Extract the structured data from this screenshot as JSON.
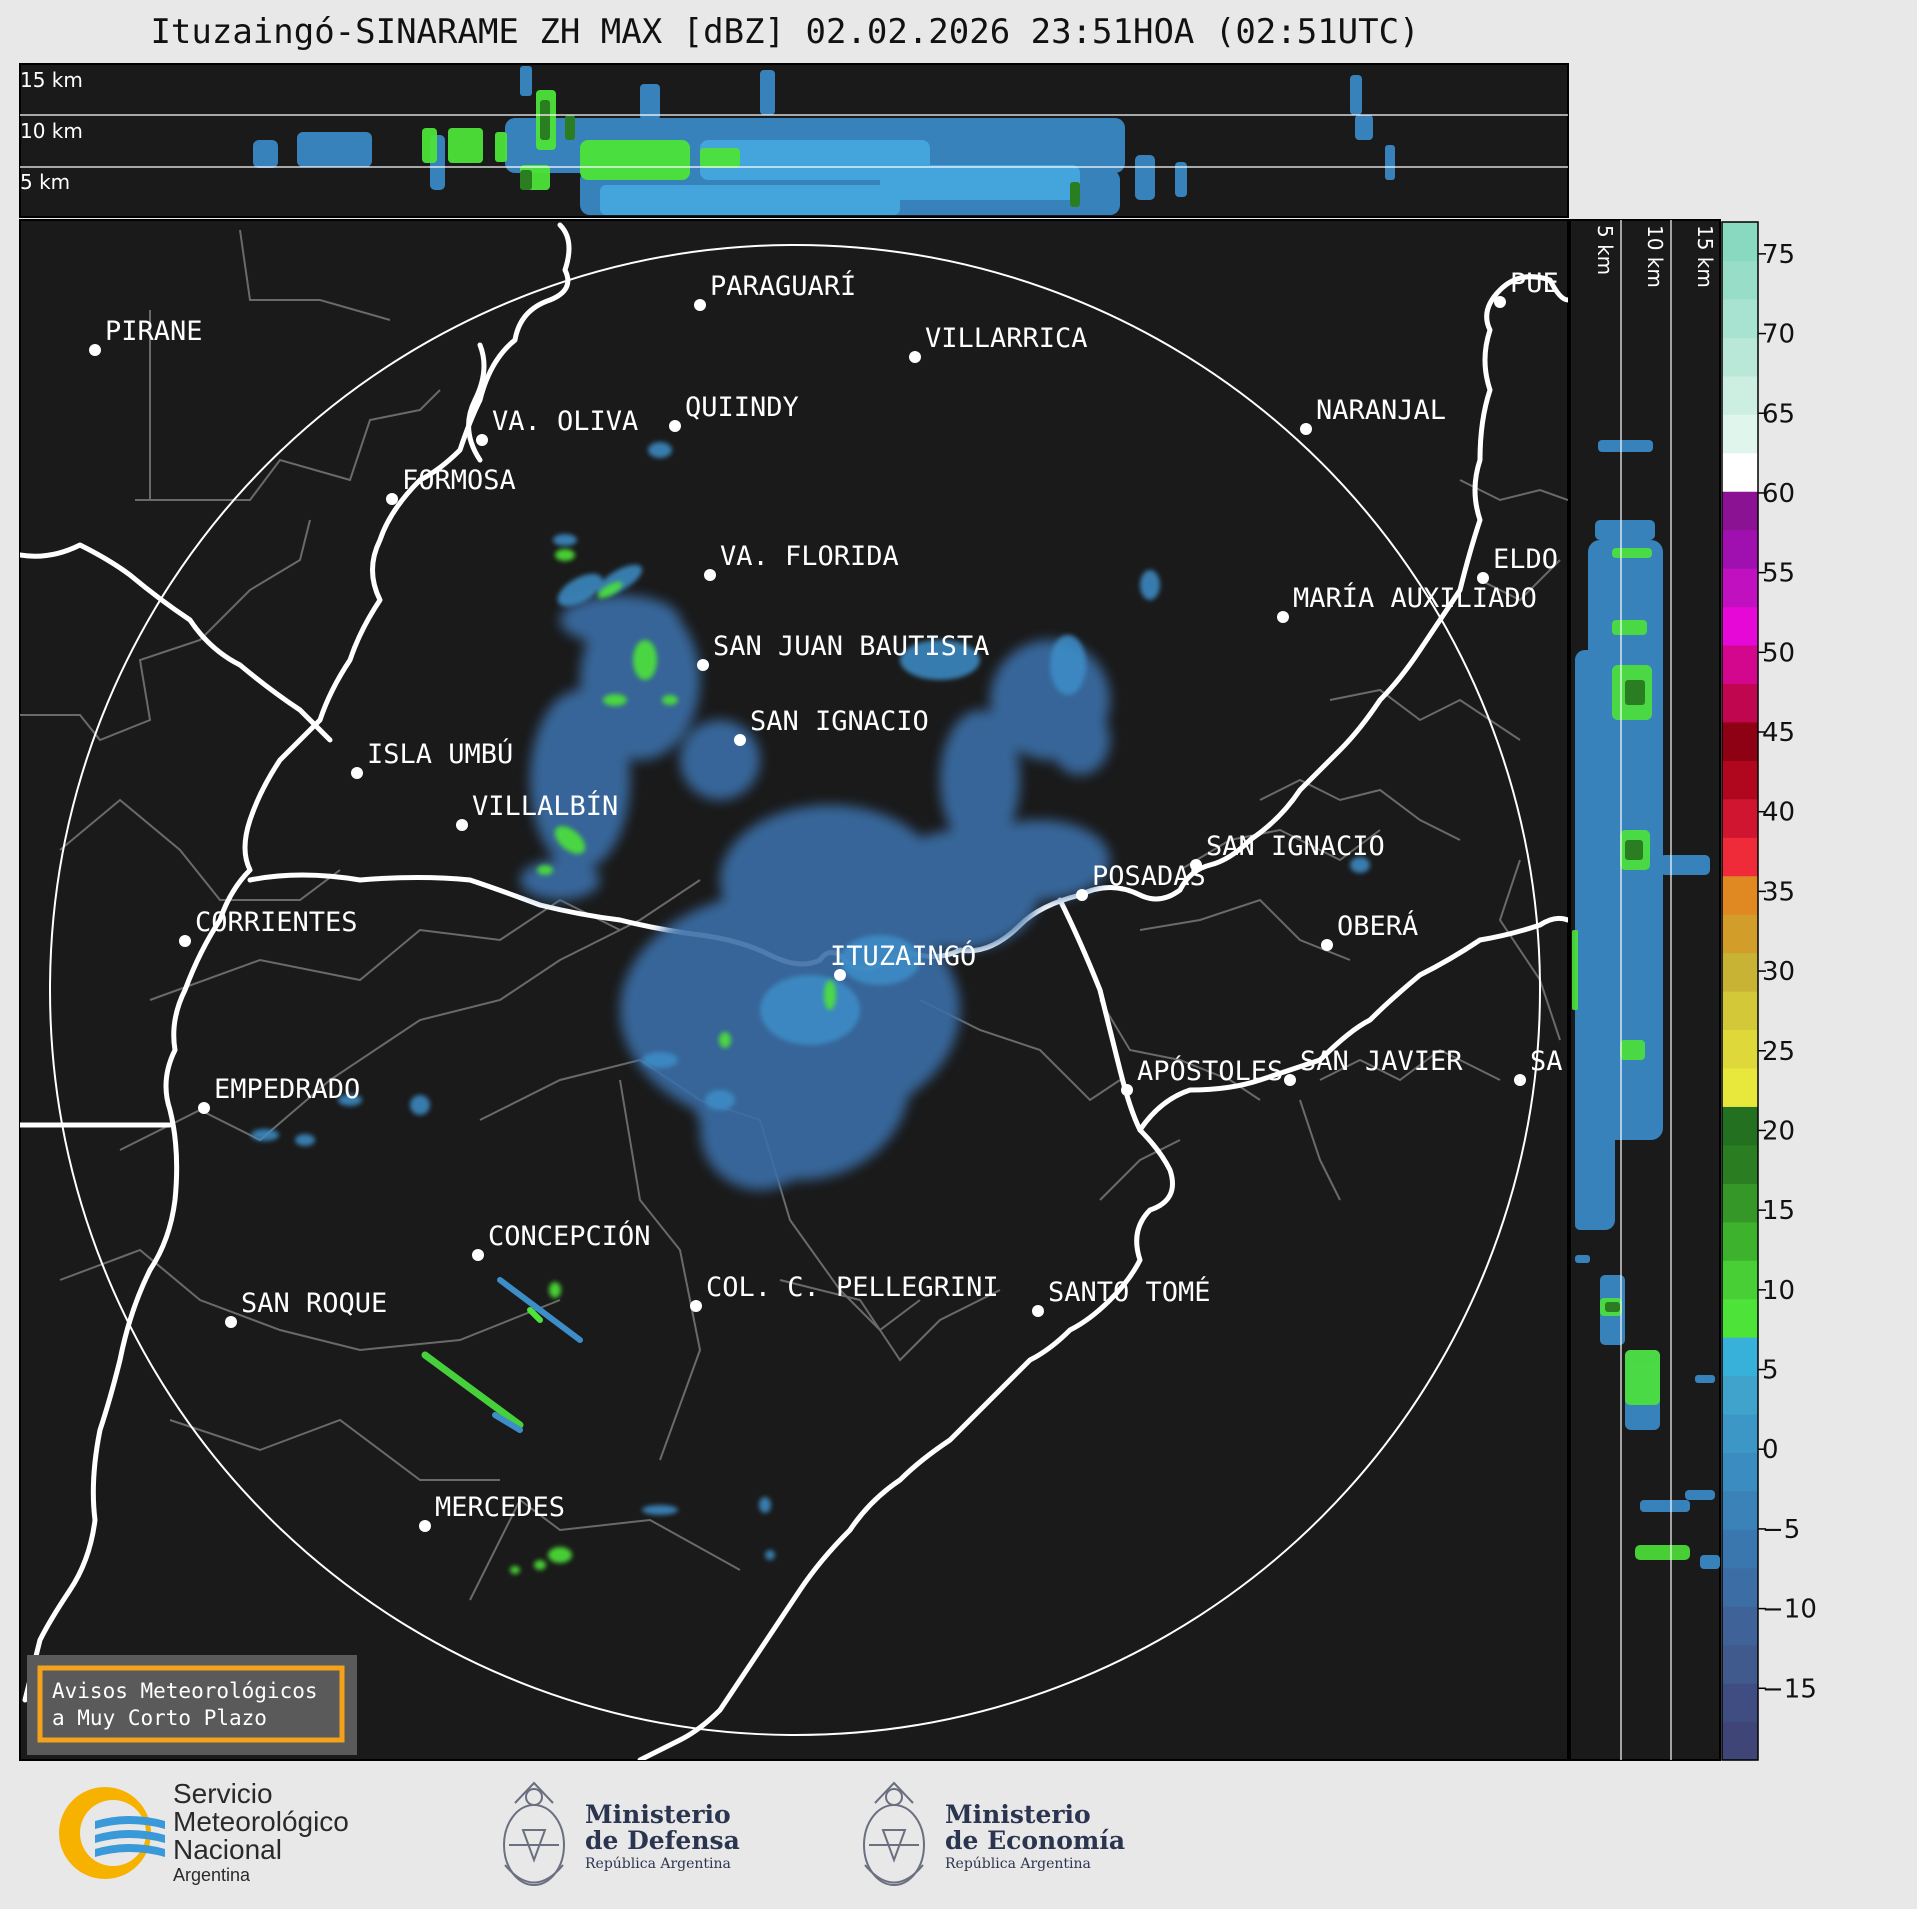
{
  "title": "Ituzaingó-SINARAME ZH MAX [dBZ] 02.02.2026 23:51HOA (02:51UTC)",
  "profile_top": {
    "levels": [
      "15 km",
      "10 km",
      "5 km"
    ]
  },
  "profile_right": {
    "levels": [
      "5 km",
      "10 km",
      "15 km"
    ]
  },
  "cities": [
    "PIRANE",
    "PARAGUARÍ",
    "VILLARRICA",
    "VA. OLIVA",
    "QUIINDY",
    "FORMOSA",
    "NARANJAL",
    "PUE",
    "VA. FLORIDA",
    "ELDO",
    "MARÍA AUXILIADO",
    "SAN JUAN BAUTISTA",
    "SAN IGNACIO",
    "ISLA UMBÚ",
    "VILLALBÍN",
    "SAN IGNACIO",
    "POSADAS",
    "CORRIENTES",
    "ITUZAINGÓ",
    "OBERÁ",
    "EMPEDRADO",
    "APÓSTOLES",
    "SAN JAVIER",
    "SA",
    "CONCEPCIÓN",
    "COL. C. PELLEGRINI",
    "SANTO TOMÉ",
    "SAN ROQUE",
    "MERCEDES"
  ],
  "colorbar": {
    "ticks": [
      "75",
      "70",
      "65",
      "60",
      "55",
      "50",
      "45",
      "40",
      "35",
      "30",
      "25",
      "20",
      "15",
      "10",
      "5",
      "0",
      "−5",
      "−10",
      "−15"
    ],
    "colors": [
      "#3f4576",
      "#404d82",
      "#415a8e",
      "#3f6398",
      "#3c6da4",
      "#3a77ae",
      "#3a82b8",
      "#3b8cc0",
      "#3d97c6",
      "#3fa3cc",
      "#37b1da",
      "#4de339",
      "#48cf35",
      "#3db22d",
      "#349727",
      "#2b7d22",
      "#227020",
      "#e8e83c",
      "#dfd83a",
      "#d3c838",
      "#c9b334",
      "#d39d2a",
      "#e08822",
      "#ef2b3a",
      "#d01530",
      "#b0061e",
      "#8e0014",
      "#c0064e",
      "#d3068e",
      "#e608d6",
      "#c010c0",
      "#a010b0",
      "#8c1294",
      "#ffffff",
      "#e0f5ec",
      "#cdefe2",
      "#b9e8d8",
      "#a8e2d0",
      "#98ddc8",
      "#89d8c0"
    ]
  },
  "notice": {
    "line1": "Avisos Meteorológicos",
    "line2": "a Muy Corto Plazo"
  },
  "logos": {
    "smn": {
      "line1": "Servicio",
      "line2": "Meteorológico",
      "line3": "Nacional",
      "line4": "Argentina"
    },
    "defensa": {
      "line1": "Ministerio",
      "line2": "de Defensa",
      "line3": "República Argentina"
    },
    "economia": {
      "line1": "Ministerio",
      "line2": "de Economía",
      "line3": "República Argentina"
    }
  }
}
